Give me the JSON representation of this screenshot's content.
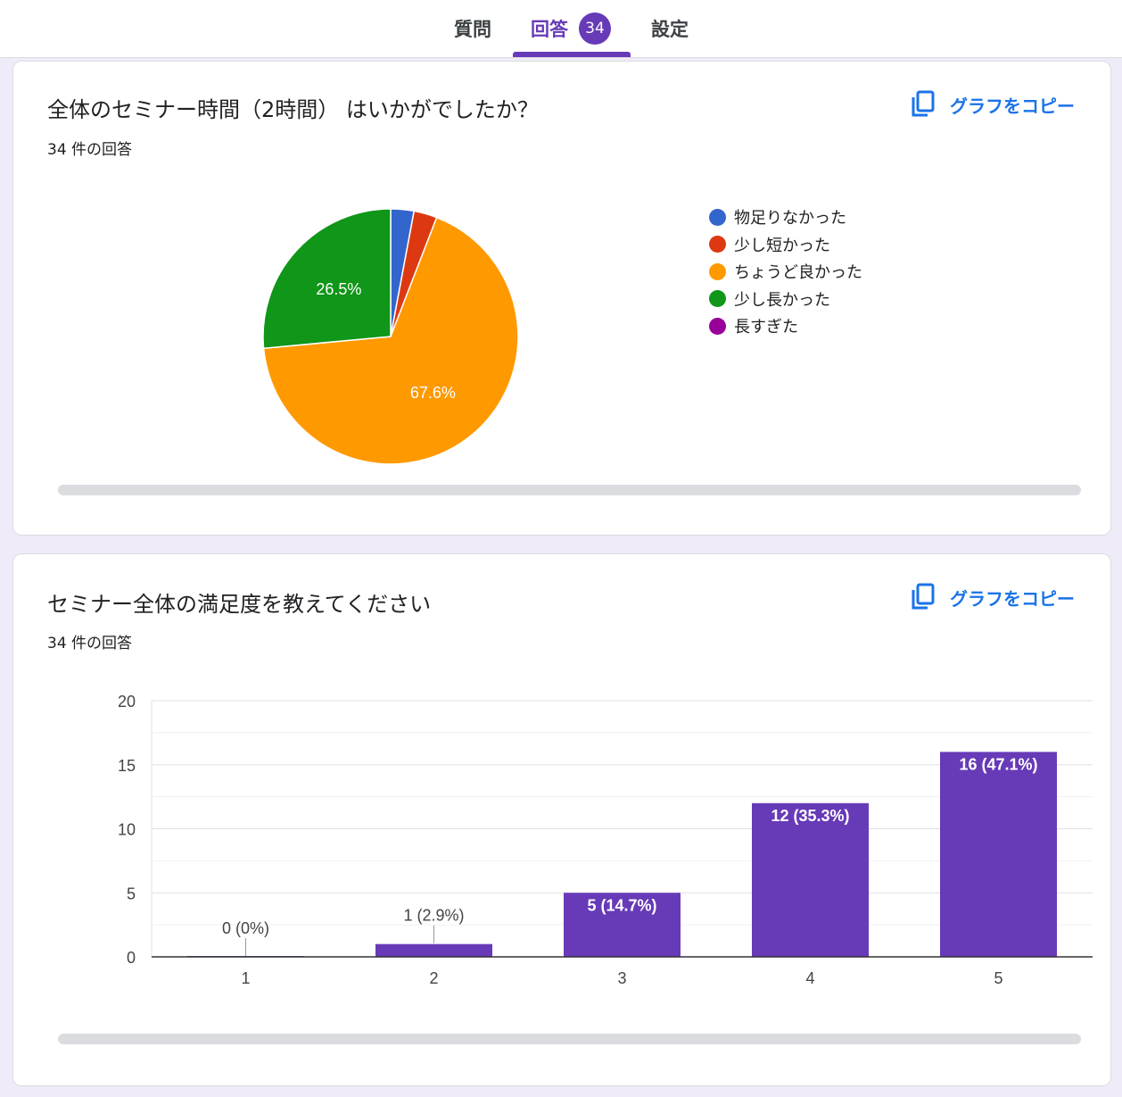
{
  "tabs": [
    {
      "label": "質問"
    },
    {
      "label": "回答",
      "badge": "34",
      "active": true
    },
    {
      "label": "設定"
    }
  ],
  "colors": {
    "accent": "#673ab7",
    "link": "#1a73e8",
    "pie": [
      "#3366cc",
      "#dc3912",
      "#ff9900",
      "#109618",
      "#990099"
    ]
  },
  "question1": {
    "title": "全体のセミナー時間（2時間） はいかがでしたか？",
    "count": "34 件の回答",
    "copy_label": "グラフをコピー"
  },
  "question2": {
    "title": "セミナー全体の満足度を教えてください",
    "count": "34 件の回答",
    "copy_label": "グラフをコピー"
  },
  "chart_data": [
    {
      "type": "pie",
      "labels": [
        "物足りなかった",
        "少し短かった",
        "ちょうど良かった",
        "少し長かった",
        "長すぎた"
      ],
      "values": [
        1,
        1,
        23,
        9,
        0
      ],
      "slice_labels": [
        "",
        "",
        "67.6%",
        "26.5%",
        ""
      ],
      "legend": "right"
    },
    {
      "type": "bar",
      "categories": [
        "1",
        "2",
        "3",
        "4",
        "5"
      ],
      "values": [
        0,
        1,
        5,
        12,
        16
      ],
      "data_labels": [
        "0 (0%)",
        "1 (2.9%)",
        "5 (14.7%)",
        "12 (35.3%)",
        "16 (47.1%)"
      ],
      "ylim": [
        0,
        20
      ],
      "yticks": [
        0,
        5,
        10,
        15,
        20
      ],
      "grid": true
    }
  ]
}
